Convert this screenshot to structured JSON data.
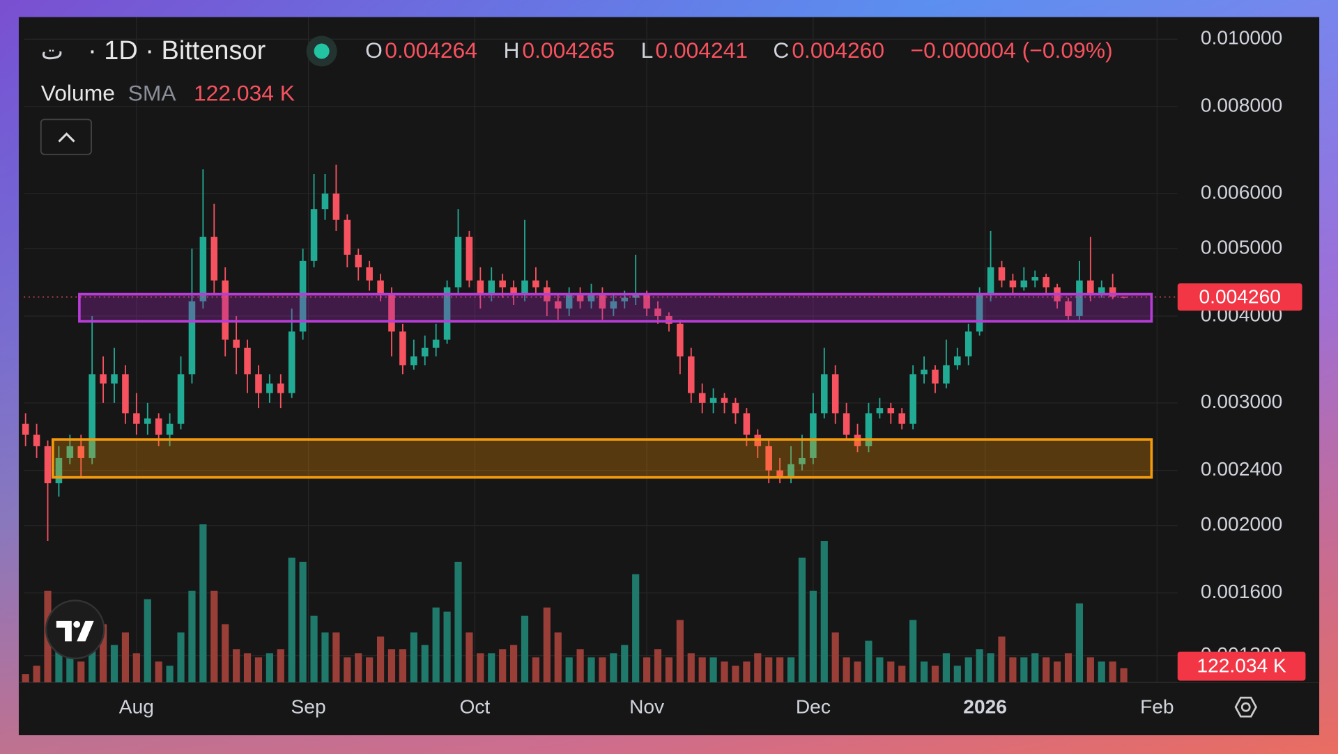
{
  "header": {
    "icon": "ت",
    "symbol": "· 1D · Bittensor",
    "o_key": "O",
    "h_key": "H",
    "l_key": "L",
    "c_key": "C",
    "change": "−0.000004 (−0.09%)",
    "volume_title": "Volume",
    "sma": "SMA",
    "sma_value": "122.034 K"
  },
  "chart_data": {
    "type": "candlestick",
    "log_scale": true,
    "grid": true,
    "up_color": "#22ab94",
    "down_color": "#f7525f",
    "volume_up_color": "#1f7a6c",
    "volume_down_color": "#9a3e38",
    "xlim": [
      -0.15,
      103.85
    ],
    "xticks": [
      {
        "value": 10,
        "label": "Aug"
      },
      {
        "value": 25.5,
        "label": "Sep"
      },
      {
        "value": 40.5,
        "label": "Oct"
      },
      {
        "value": 56,
        "label": "Nov"
      },
      {
        "value": 71,
        "label": "Dec"
      },
      {
        "value": 86.5,
        "label": "2026",
        "bold": true
      },
      {
        "value": 102,
        "label": "Feb"
      }
    ],
    "ylim": [
      0.00119,
      0.01076
    ],
    "yticks": [
      {
        "value": 0.01,
        "label": "0.010000"
      },
      {
        "value": 0.008,
        "label": "0.008000"
      },
      {
        "value": 0.006,
        "label": "0.006000"
      },
      {
        "value": 0.005,
        "label": "0.005000"
      },
      {
        "value": 0.004,
        "label": "0.004000"
      },
      {
        "value": 0.003,
        "label": "0.003000"
      },
      {
        "value": 0.0024,
        "label": "0.002400"
      },
      {
        "value": 0.002,
        "label": "0.002000"
      },
      {
        "value": 0.0016,
        "label": "0.001600"
      },
      {
        "value": 0.0013,
        "label": "0.001300"
      }
    ],
    "volume_ylim": [
      0,
      5600000
    ],
    "last_price_label": "0.004260",
    "volume_label": "122.034 K",
    "zones": [
      {
        "color": "#b63dd6",
        "fill": "rgba(156,39,176,0.33)",
        "x_range": [
          4.85,
          101.5
        ],
        "price_range": [
          0.00393,
          0.0043
        ]
      },
      {
        "color": "#f29a0c",
        "fill": "rgba(255,152,0,0.28)",
        "x_range": [
          2.46,
          101.5
        ],
        "price_range": [
          0.002345,
          0.002659
        ]
      }
    ],
    "candles": {
      "open": [
        0.0028,
        0.0027,
        0.0026,
        0.0023,
        0.0025,
        0.0026,
        0.0025,
        0.0033,
        0.0032,
        0.0033,
        0.0029,
        0.0028,
        0.00285,
        0.0027,
        0.0028,
        0.0033,
        0.0042,
        0.0052,
        0.0045,
        0.0037,
        0.0036,
        0.0033,
        0.0031,
        0.0032,
        0.0031,
        0.0038,
        0.0048,
        0.0057,
        0.006,
        0.0055,
        0.0049,
        0.0047,
        0.0045,
        0.0043,
        0.0038,
        0.0034,
        0.0035,
        0.0036,
        0.0037,
        0.0044,
        0.0052,
        0.0045,
        0.0043,
        0.0045,
        0.0044,
        0.0043,
        0.0045,
        0.0044,
        0.0042,
        0.0041,
        0.0043,
        0.0042,
        0.0043,
        0.0041,
        0.0042,
        0.00425,
        0.0043,
        0.0041,
        0.004,
        0.0039,
        0.0035,
        0.0031,
        0.003,
        0.00305,
        0.003,
        0.0029,
        0.0027,
        0.0026,
        0.0024,
        0.00235,
        0.00245,
        0.0025,
        0.0029,
        0.0033,
        0.0029,
        0.0027,
        0.0026,
        0.0029,
        0.00295,
        0.0029,
        0.0028,
        0.0033,
        0.00335,
        0.0032,
        0.0034,
        0.0035,
        0.0038,
        0.0043,
        0.0047,
        0.0045,
        0.0044,
        0.0045,
        0.00455,
        0.0044,
        0.0042,
        0.004,
        0.0045,
        0.0043,
        0.0044,
        0.004264
      ],
      "high": [
        0.0029,
        0.0028,
        0.00265,
        0.0026,
        0.0027,
        0.0027,
        0.004,
        0.0035,
        0.0036,
        0.0034,
        0.0031,
        0.003,
        0.0029,
        0.0029,
        0.0035,
        0.005,
        0.0065,
        0.0058,
        0.0047,
        0.004,
        0.0037,
        0.0034,
        0.0033,
        0.0033,
        0.0041,
        0.005,
        0.0064,
        0.0064,
        0.0066,
        0.0056,
        0.005,
        0.0048,
        0.0046,
        0.0044,
        0.0039,
        0.0037,
        0.00375,
        0.0039,
        0.0045,
        0.0057,
        0.0053,
        0.0047,
        0.0047,
        0.0046,
        0.0045,
        0.0055,
        0.0047,
        0.0045,
        0.0043,
        0.0044,
        0.0044,
        0.00445,
        0.0044,
        0.0043,
        0.00435,
        0.0049,
        0.00435,
        0.0042,
        0.00405,
        0.00395,
        0.0036,
        0.0032,
        0.00315,
        0.0031,
        0.00305,
        0.00295,
        0.00275,
        0.00265,
        0.0025,
        0.0026,
        0.0027,
        0.0031,
        0.0036,
        0.0034,
        0.003,
        0.0028,
        0.003,
        0.00305,
        0.003,
        0.00295,
        0.0034,
        0.0035,
        0.0034,
        0.0037,
        0.0036,
        0.0039,
        0.0044,
        0.0053,
        0.0048,
        0.0046,
        0.0047,
        0.00465,
        0.0046,
        0.00445,
        0.00425,
        0.0048,
        0.0052,
        0.0045,
        0.0046,
        0.004265
      ],
      "low": [
        0.0026,
        0.0025,
        0.0019,
        0.0022,
        0.00245,
        0.00235,
        0.00245,
        0.003,
        0.003,
        0.0028,
        0.0027,
        0.0027,
        0.0026,
        0.0026,
        0.00275,
        0.0032,
        0.0041,
        0.0043,
        0.0035,
        0.0033,
        0.0031,
        0.00295,
        0.003,
        0.00295,
        0.00305,
        0.0037,
        0.0047,
        0.0055,
        0.0053,
        0.0047,
        0.0045,
        0.00435,
        0.0042,
        0.0035,
        0.0033,
        0.00335,
        0.0034,
        0.0035,
        0.00365,
        0.0043,
        0.0044,
        0.0041,
        0.0042,
        0.00425,
        0.00415,
        0.0042,
        0.0043,
        0.004,
        0.00395,
        0.004,
        0.0041,
        0.0041,
        0.00395,
        0.004,
        0.0041,
        0.00415,
        0.004,
        0.0039,
        0.0038,
        0.0033,
        0.003,
        0.0029,
        0.0029,
        0.0029,
        0.0028,
        0.0026,
        0.0025,
        0.0023,
        0.0023,
        0.0023,
        0.0024,
        0.00245,
        0.00285,
        0.0028,
        0.00265,
        0.00255,
        0.00255,
        0.00285,
        0.0028,
        0.00275,
        0.00275,
        0.0032,
        0.0031,
        0.00315,
        0.00335,
        0.0034,
        0.00375,
        0.0042,
        0.0044,
        0.0043,
        0.00435,
        0.0044,
        0.0043,
        0.0041,
        0.00395,
        0.00395,
        0.0042,
        0.00425,
        0.00423,
        0.004241
      ],
      "close": [
        0.0027,
        0.0026,
        0.0023,
        0.0025,
        0.0026,
        0.0025,
        0.0033,
        0.0032,
        0.0033,
        0.0029,
        0.0028,
        0.00285,
        0.0027,
        0.0028,
        0.0033,
        0.0042,
        0.0052,
        0.0045,
        0.0037,
        0.0036,
        0.0033,
        0.0031,
        0.0032,
        0.0031,
        0.0038,
        0.0048,
        0.0057,
        0.006,
        0.0055,
        0.0049,
        0.0047,
        0.0045,
        0.0043,
        0.0038,
        0.0034,
        0.0035,
        0.0036,
        0.0037,
        0.0044,
        0.0052,
        0.0045,
        0.0043,
        0.0045,
        0.0044,
        0.0043,
        0.0045,
        0.0044,
        0.0042,
        0.0041,
        0.0043,
        0.0042,
        0.0043,
        0.0041,
        0.0042,
        0.00425,
        0.0043,
        0.0041,
        0.004,
        0.0039,
        0.0035,
        0.0031,
        0.003,
        0.00305,
        0.003,
        0.0029,
        0.0027,
        0.0026,
        0.0024,
        0.00235,
        0.00245,
        0.0025,
        0.0029,
        0.0033,
        0.0029,
        0.0027,
        0.0026,
        0.0029,
        0.00295,
        0.0029,
        0.0028,
        0.0033,
        0.00335,
        0.0032,
        0.0034,
        0.0035,
        0.0038,
        0.0043,
        0.0047,
        0.0045,
        0.0044,
        0.0045,
        0.00455,
        0.0044,
        0.0042,
        0.004,
        0.0045,
        0.0043,
        0.0044,
        0.004264,
        0.00426
      ],
      "volume": [
        70000,
        140000,
        770000,
        420000,
        210000,
        175000,
        420000,
        490000,
        315000,
        420000,
        245000,
        700000,
        175000,
        140000,
        420000,
        770000,
        1330000,
        770000,
        490000,
        280000,
        245000,
        210000,
        245000,
        280000,
        1050000,
        1015000,
        560000,
        420000,
        420000,
        210000,
        245000,
        210000,
        385000,
        280000,
        280000,
        420000,
        315000,
        630000,
        595000,
        1015000,
        420000,
        245000,
        245000,
        280000,
        315000,
        560000,
        210000,
        630000,
        420000,
        210000,
        280000,
        210000,
        210000,
        245000,
        315000,
        910000,
        210000,
        280000,
        210000,
        525000,
        245000,
        210000,
        210000,
        175000,
        140000,
        175000,
        245000,
        210000,
        210000,
        210000,
        1050000,
        770000,
        1190000,
        420000,
        210000,
        175000,
        350000,
        210000,
        175000,
        140000,
        525000,
        175000,
        140000,
        245000,
        140000,
        210000,
        280000,
        245000,
        385000,
        210000,
        210000,
        245000,
        210000,
        175000,
        245000,
        665000,
        210000,
        175000,
        175000,
        119000
      ]
    }
  }
}
